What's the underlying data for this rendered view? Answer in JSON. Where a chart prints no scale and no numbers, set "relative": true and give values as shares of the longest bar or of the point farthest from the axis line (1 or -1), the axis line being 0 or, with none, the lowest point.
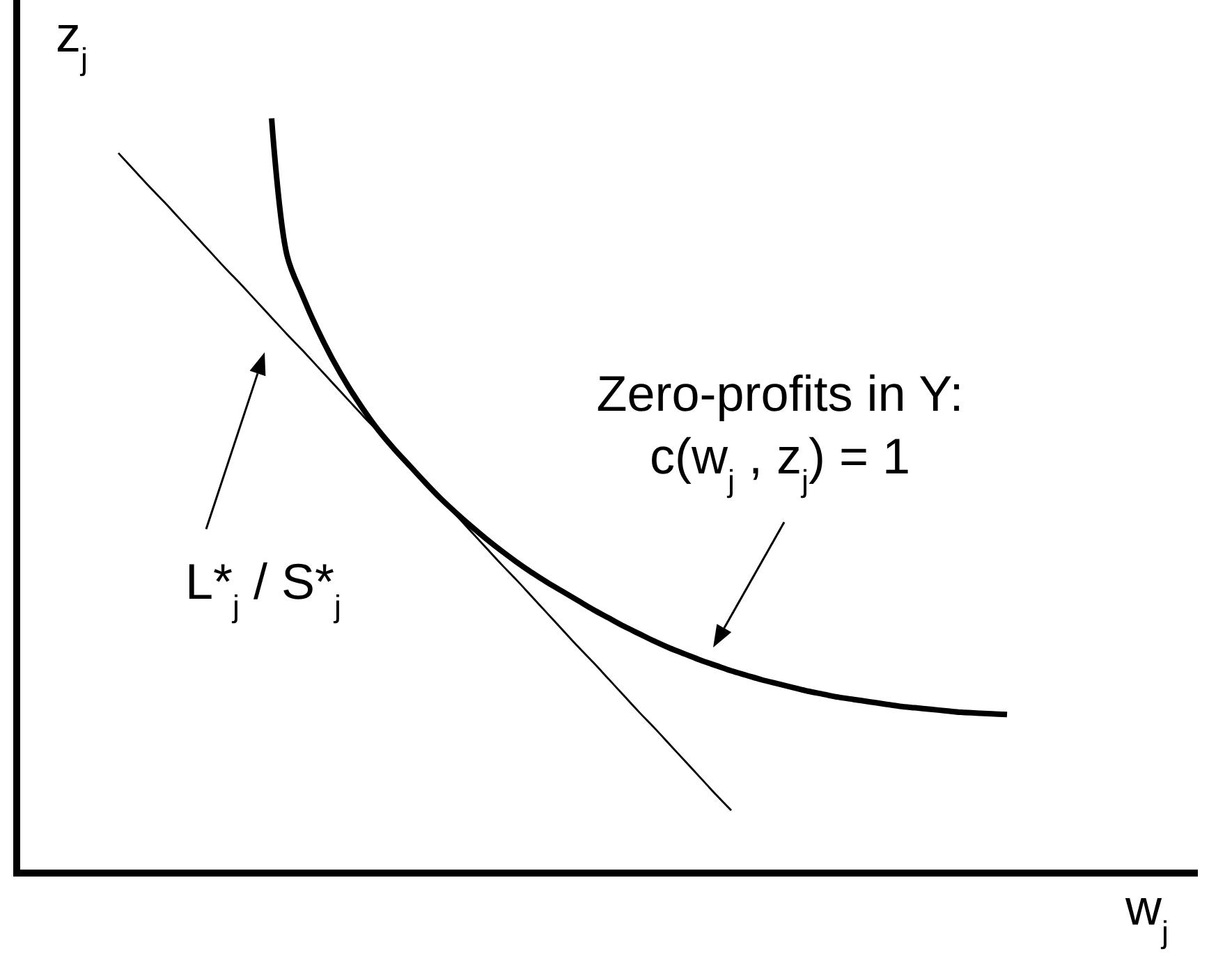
{
  "chart_data": {
    "type": "line",
    "relative": true,
    "xlabel": "w$_{j}$",
    "ylabel": "z$_{j}$",
    "categories": [
      null,
      null,
      null,
      null,
      null,
      null,
      null,
      null,
      null,
      null,
      null,
      null,
      null,
      null,
      null,
      null,
      null,
      null,
      null,
      null,
      null,
      null,
      null,
      null,
      null,
      null,
      null,
      null,
      null,
      null,
      null,
      null,
      null,
      null,
      null,
      null,
      null,
      null,
      null,
      null,
      null,
      null,
      null,
      null,
      null,
      null,
      null,
      null,
      null,
      null,
      null,
      null,
      null,
      null,
      null,
      null,
      null,
      null,
      null
    ],
    "series": [
      {
        "color": "#000000",
        "values": [
          null,
          null,
          null,
          null,
          null,
          null,
          null,
          null,
          null,
          null,
          1,
          0.819,
          0.766,
          0.72,
          0.68,
          0.645,
          0.614,
          0.586,
          0.562,
          0.54,
          0.518,
          0.497,
          0.478,
          0.46,
          0.443,
          0.427,
          0.412,
          0.398,
          0.385,
          0.373,
          0.361,
          0.349,
          0.338,
          0.327,
          0.317,
          0.307,
          0.298,
          0.29,
          0.282,
          0.275,
          0.268,
          0.262,
          0.256,
          0.251,
          0.246,
          0.241,
          0.237,
          0.233,
          0.23,
          0.227,
          0.224,
          0.221,
          0.219,
          0.217,
          0.215,
          0.213,
          0.212,
          0.211,
          0.21
        ]
      },
      {
        "color": "#000000",
        "values": [
          0.954,
          0.932,
          0.91,
          0.889,
          0.867,
          0.845,
          0.823,
          0.801,
          0.78,
          0.758,
          0.736,
          0.714,
          0.693,
          0.671,
          0.649,
          0.627,
          0.605,
          0.584,
          0.562,
          0.54,
          0.518,
          0.496,
          0.475,
          0.453,
          0.431,
          0.409,
          0.388,
          0.366,
          0.344,
          0.322,
          0.3,
          0.279,
          0.257,
          0.235,
          0.213,
          0.192,
          0.17,
          0.148,
          0.126,
          0.104,
          0.083,
          null,
          null,
          null,
          null,
          null,
          null,
          null,
          null,
          null,
          null,
          null,
          null,
          null,
          null,
          null,
          null,
          null,
          null
        ]
      }
    ],
    "annotations": [
      "Zero-profits in Y:",
      "c(w$_{j}$ , z$_{j}$) = 1",
      "L*$_{j}$ / S*$_{j}$"
    ]
  }
}
